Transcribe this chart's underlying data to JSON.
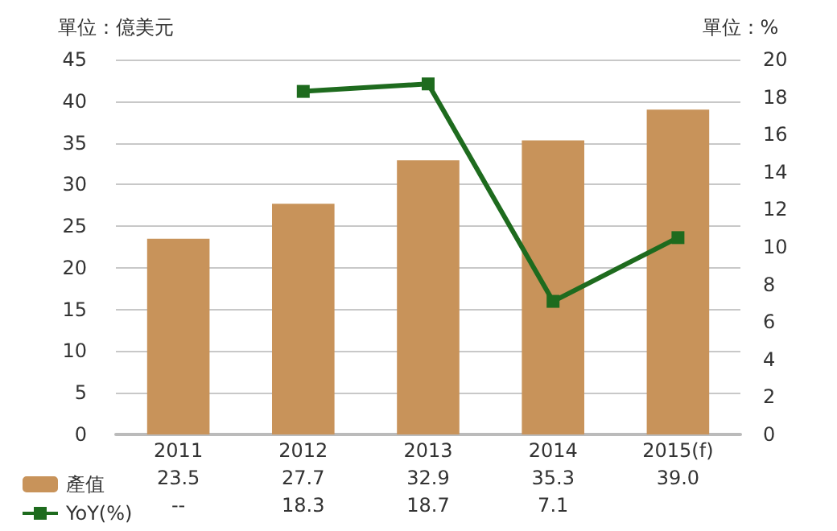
{
  "chart_data": {
    "type": "bar",
    "ylabel": "單位：億美元",
    "y2label": "單位：%",
    "categories": [
      "2011",
      "2012",
      "2013",
      "2014",
      "2015(f)"
    ],
    "series": [
      {
        "name": "產值",
        "color": "#c8935a",
        "values": [
          23.5,
          27.7,
          32.9,
          35.3,
          39.0
        ],
        "value_labels": [
          "23.5",
          "27.7",
          "32.9",
          "35.3",
          "39.0"
        ]
      },
      {
        "name": "YoY(%)",
        "type": "line",
        "axis": "y2",
        "color": "#1e6b1e",
        "values": [
          null,
          18.3,
          18.7,
          7.1,
          10.5
        ],
        "value_labels": [
          "--",
          "18.3",
          "18.7",
          "7.1",
          null
        ]
      }
    ],
    "ylim": [
      0,
      45
    ],
    "yticks": [
      0,
      5,
      10,
      15,
      20,
      25,
      30,
      35,
      40,
      45
    ],
    "y2lim": [
      0,
      20
    ],
    "y2ticks": [
      0,
      2,
      4,
      6,
      8,
      10,
      12,
      14,
      16,
      18,
      20
    ],
    "grid": "y",
    "legend": "bottom left",
    "marker": "square",
    "line_style": "solid"
  }
}
